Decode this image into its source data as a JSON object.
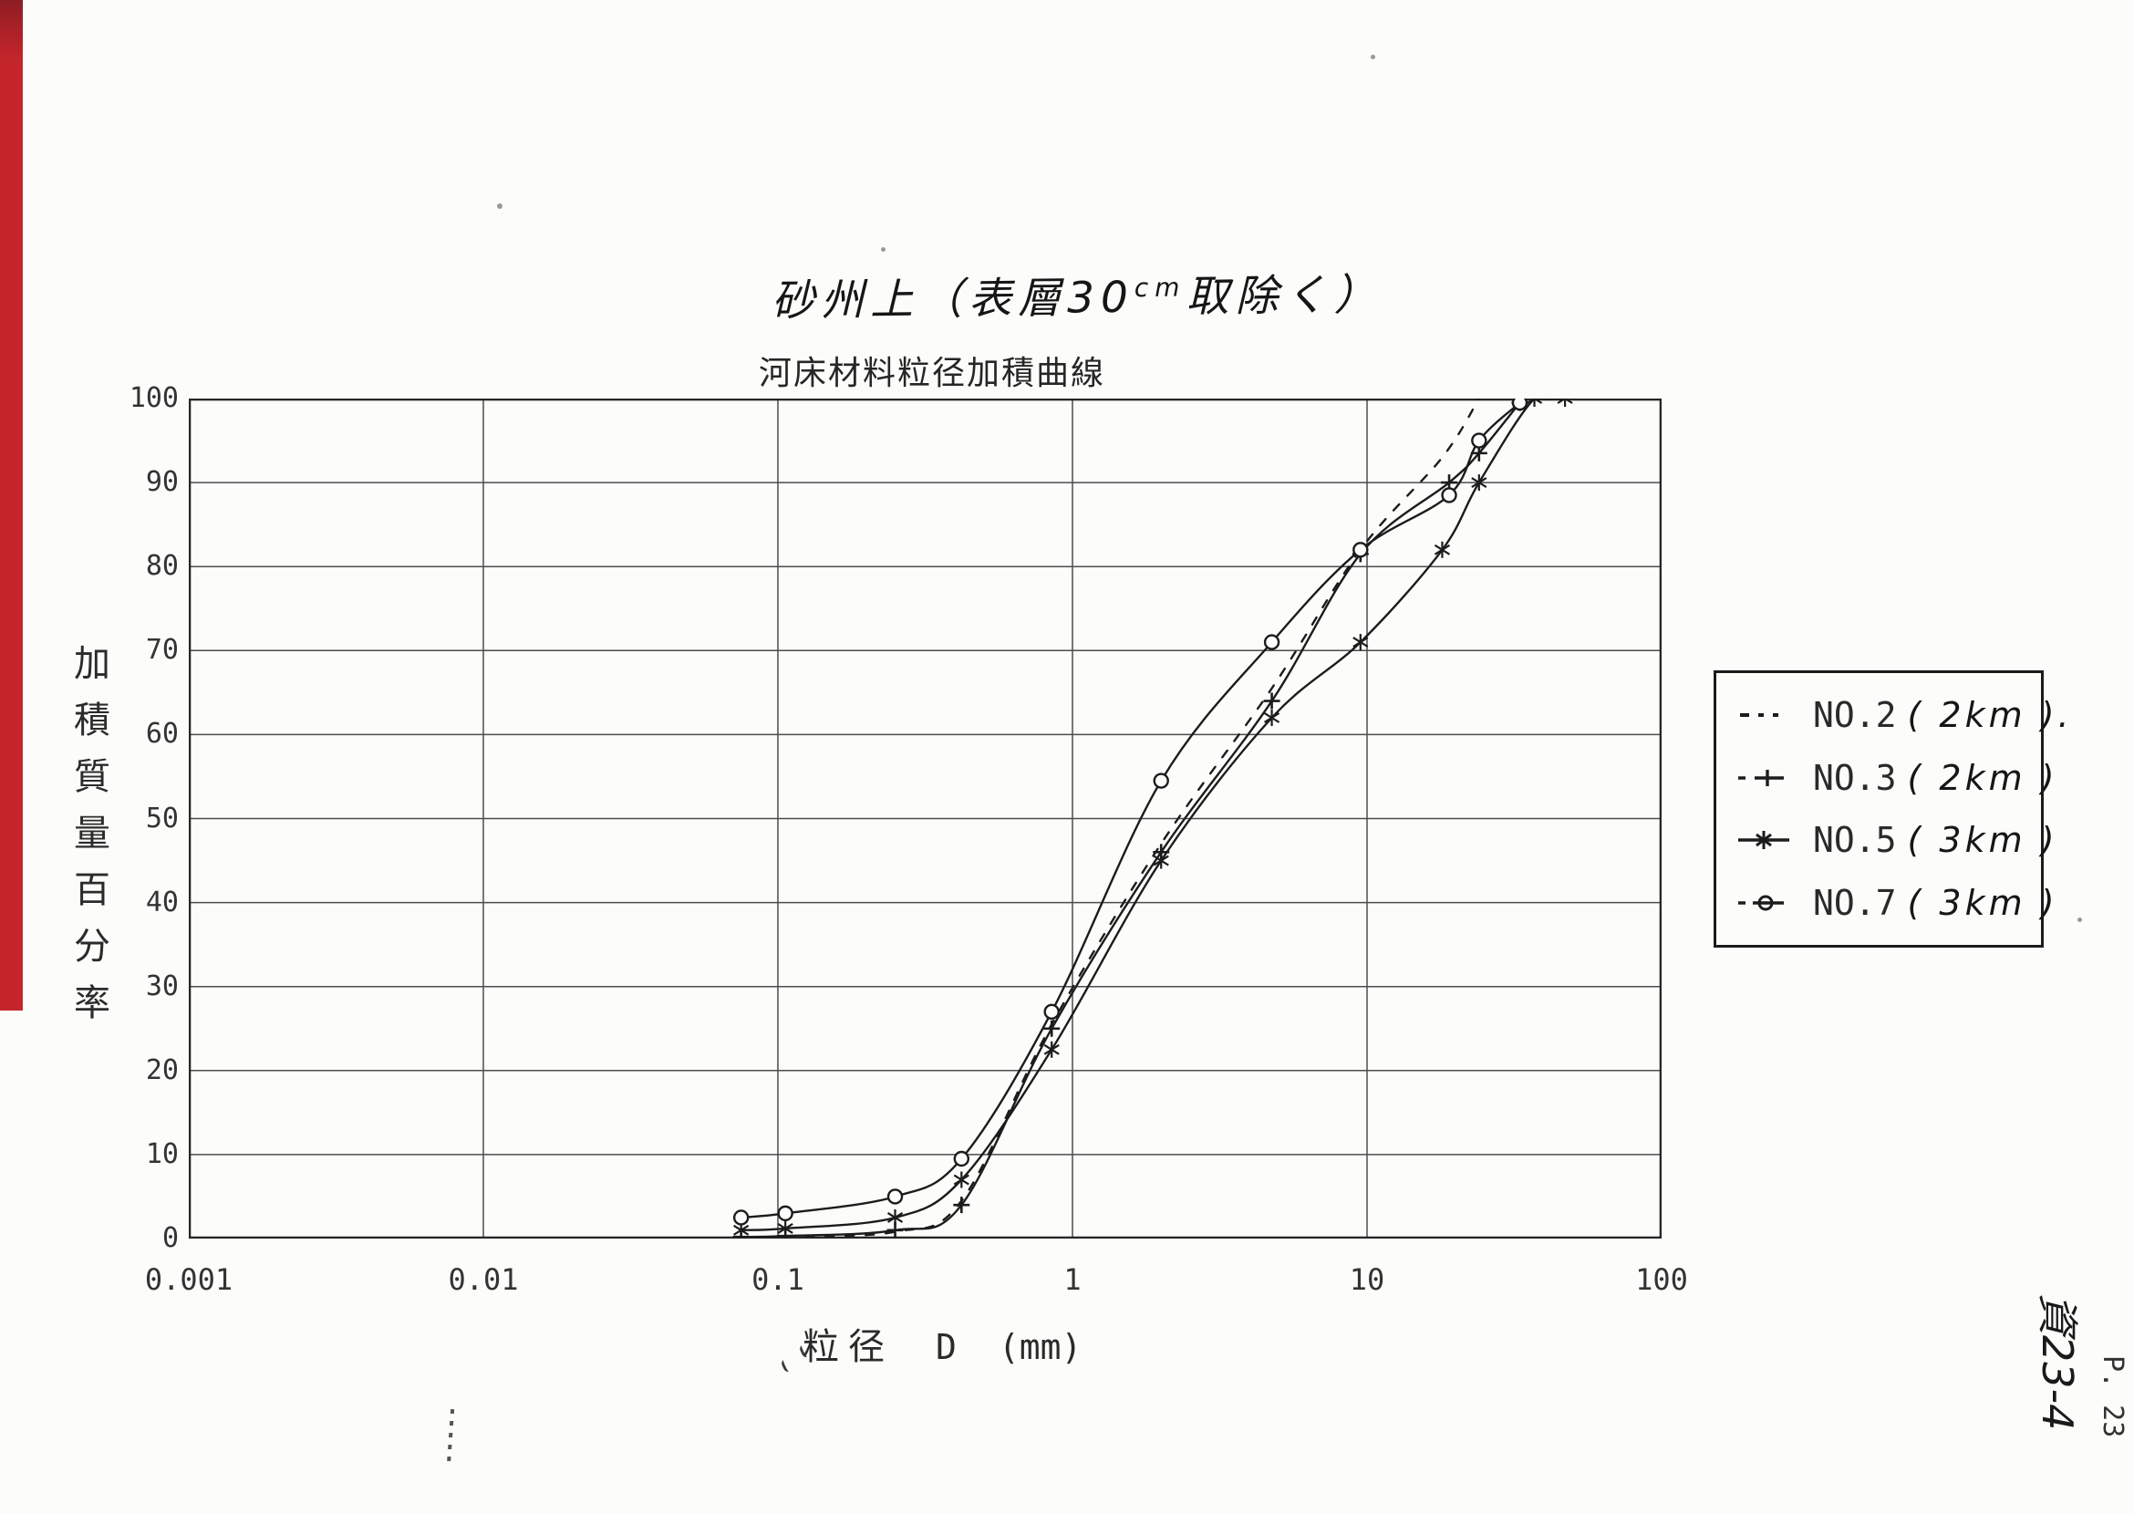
{
  "page": {
    "handwritten_title": {
      "prefix": "砂州上（表層30",
      "sup": "cm",
      "suffix": "取除く）"
    },
    "printed_title": "河床材料粒径加積曲線",
    "corner_note_handwritten": "資23-4",
    "corner_note_printed": "P. 23"
  },
  "chart_data": {
    "type": "line",
    "title": "河床材料粒径加積曲線",
    "x_axis": {
      "label_cjk": "粒径",
      "label_var": "D",
      "label_unit": "(mm)",
      "scale": "log10",
      "range": [
        0.001,
        100
      ],
      "ticks": [
        "0.001",
        "0.01",
        "0.1",
        "1",
        "10",
        "100"
      ]
    },
    "y_axis": {
      "label": "加積質量百分率",
      "unit": "%",
      "range": [
        0,
        100
      ],
      "grid_step": 10,
      "ticks": [
        "100",
        "90",
        "80",
        "70",
        "60",
        "50",
        "40",
        "30",
        "20",
        "10",
        "0"
      ]
    },
    "grid": {
      "vertical": "log decades",
      "horizontal": "every 10%"
    },
    "line_color": "#1c1c1c",
    "legend_position": "right, outside plot",
    "legend": [
      {
        "name": "NO.2",
        "note": "( 2km ).",
        "marker": "dash"
      },
      {
        "name": "NO.3",
        "note": "( 2km )",
        "marker": "plus"
      },
      {
        "name": "NO.5",
        "note": "( 3km )",
        "marker": "asterisk"
      },
      {
        "name": "NO.7",
        "note": "( 3km )",
        "marker": "circle"
      }
    ],
    "series": [
      {
        "name": "NO.2",
        "marker": "none",
        "line": "dashed",
        "points": [
          [
            0.106,
            0.3
          ],
          [
            0.25,
            0.8
          ],
          [
            0.42,
            4.5
          ],
          [
            0.85,
            25.5
          ],
          [
            2,
            47
          ],
          [
            4.75,
            65.5
          ],
          [
            9.5,
            82
          ],
          [
            18,
            93
          ],
          [
            24,
            100
          ]
        ]
      },
      {
        "name": "NO.3",
        "marker": "plus",
        "line": "solid",
        "points": [
          [
            0.075,
            0.2
          ],
          [
            0.106,
            0.3
          ],
          [
            0.25,
            1
          ],
          [
            0.42,
            4
          ],
          [
            0.85,
            25
          ],
          [
            2,
            46
          ],
          [
            4.75,
            64
          ],
          [
            9.5,
            81.5
          ],
          [
            19,
            90
          ],
          [
            24,
            93.5
          ],
          [
            33,
            99.5
          ]
        ]
      },
      {
        "name": "NO.5",
        "marker": "asterisk",
        "line": "solid",
        "points": [
          [
            0.075,
            1
          ],
          [
            0.106,
            1.2
          ],
          [
            0.25,
            2.5
          ],
          [
            0.42,
            7
          ],
          [
            0.85,
            22.5
          ],
          [
            2,
            45
          ],
          [
            4.75,
            62
          ],
          [
            9.5,
            71
          ],
          [
            18,
            82
          ],
          [
            24,
            90
          ],
          [
            37,
            100
          ],
          [
            47,
            100
          ]
        ]
      },
      {
        "name": "NO.7",
        "marker": "circle",
        "line": "solid",
        "points": [
          [
            0.075,
            2.5
          ],
          [
            0.106,
            3
          ],
          [
            0.25,
            5
          ],
          [
            0.42,
            9.5
          ],
          [
            0.85,
            27
          ],
          [
            2,
            54.5
          ],
          [
            4.75,
            71
          ],
          [
            9.5,
            82
          ],
          [
            19,
            88.5
          ],
          [
            24,
            95
          ],
          [
            33,
            99.5
          ]
        ]
      }
    ]
  }
}
